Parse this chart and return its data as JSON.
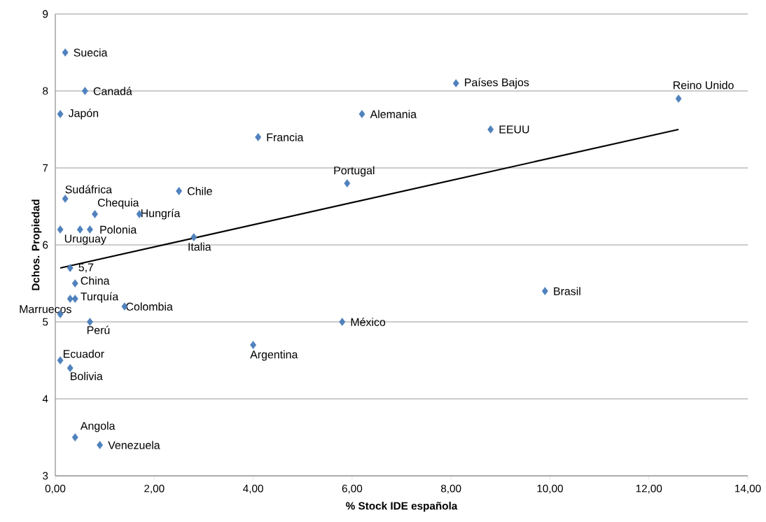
{
  "chart_data": {
    "type": "scatter",
    "xlabel": "% Stock IDE española",
    "ylabel": "Dchos. Propiedad",
    "xlim": [
      0,
      14
    ],
    "ylim": [
      3,
      9
    ],
    "xticks": [
      {
        "value": 0,
        "label": "0,00"
      },
      {
        "value": 2,
        "label": "2,00"
      },
      {
        "value": 4,
        "label": "4,00"
      },
      {
        "value": 6,
        "label": "6,00"
      },
      {
        "value": 8,
        "label": "8,00"
      },
      {
        "value": 10,
        "label": "10,00"
      },
      {
        "value": 12,
        "label": "12,00"
      },
      {
        "value": 14,
        "label": "14,00"
      }
    ],
    "yticks": [
      3,
      4,
      5,
      6,
      7,
      8,
      9
    ],
    "grid": "y",
    "marker": "diamond",
    "series": [
      {
        "color": "#4f81bd",
        "x": [
          0.2,
          0.6,
          0.1,
          0.2,
          0.8,
          1.7,
          2.5,
          0.1,
          0.5,
          0.7,
          2.8,
          0.3,
          0.4,
          0.3,
          0.4,
          0.1,
          1.4,
          0.7,
          0.1,
          0.3,
          0.4,
          0.9,
          4.0,
          5.8,
          9.9,
          4.1,
          5.9,
          6.2,
          8.1,
          8.8,
          12.6
        ],
        "values": [
          8.5,
          8.0,
          7.7,
          6.6,
          6.4,
          6.4,
          6.7,
          6.2,
          6.2,
          6.2,
          6.1,
          5.7,
          5.5,
          5.3,
          5.3,
          5.1,
          5.2,
          5.0,
          4.5,
          4.4,
          3.5,
          3.4,
          4.7,
          5.0,
          5.4,
          7.4,
          6.8,
          7.7,
          8.1,
          7.5,
          7.9
        ]
      },
      {
        "type": "line",
        "color": "#000000",
        "marker": "none",
        "x": [
          0.1,
          12.6
        ],
        "values": [
          5.7,
          7.5
        ]
      }
    ],
    "annotations": [
      {
        "text": "Suecia",
        "x": 0.2,
        "y": 8.5
      },
      {
        "text": "Canadá",
        "x": 0.6,
        "y": 8.0
      },
      {
        "text": "Japón",
        "x": 0.1,
        "y": 7.7
      },
      {
        "text": "Sudáfrica",
        "x": 0.2,
        "y": 6.6
      },
      {
        "text": "Chequia",
        "x": 0.8,
        "y": 6.4
      },
      {
        "text": "Hungría",
        "x": 1.7,
        "y": 6.4
      },
      {
        "text": "Chile",
        "x": 2.5,
        "y": 6.7
      },
      {
        "text": "Polonia",
        "x": 0.7,
        "y": 6.2
      },
      {
        "text": "Uruguay",
        "x": 0.1,
        "y": 6.2
      },
      {
        "text": "Italia",
        "x": 2.8,
        "y": 6.1
      },
      {
        "text": "5,7",
        "x": 0.3,
        "y": 5.7
      },
      {
        "text": "China",
        "x": 0.4,
        "y": 5.5
      },
      {
        "text": "Turquía",
        "x": 0.4,
        "y": 5.3
      },
      {
        "text": "Marruecos",
        "x": 0.1,
        "y": 5.1
      },
      {
        "text": "Colombia",
        "x": 1.4,
        "y": 5.2
      },
      {
        "text": "Perú",
        "x": 0.7,
        "y": 5.0
      },
      {
        "text": "Ecuador",
        "x": 0.1,
        "y": 4.5
      },
      {
        "text": "Bolivia",
        "x": 0.3,
        "y": 4.4
      },
      {
        "text": "Angola",
        "x": 0.4,
        "y": 3.5
      },
      {
        "text": "Venezuela",
        "x": 0.9,
        "y": 3.4
      },
      {
        "text": "Argentina",
        "x": 4.0,
        "y": 4.7
      },
      {
        "text": "México",
        "x": 5.8,
        "y": 5.0
      },
      {
        "text": "Brasil",
        "x": 9.9,
        "y": 5.4
      },
      {
        "text": "Francia",
        "x": 4.1,
        "y": 7.4
      },
      {
        "text": "Portugal",
        "x": 5.9,
        "y": 6.8
      },
      {
        "text": "Alemania",
        "x": 6.2,
        "y": 7.7
      },
      {
        "text": "Países Bajos",
        "x": 8.1,
        "y": 8.1
      },
      {
        "text": "EEUU",
        "x": 8.8,
        "y": 7.5
      },
      {
        "text": "Reino Unido",
        "x": 12.6,
        "y": 7.9
      }
    ]
  }
}
